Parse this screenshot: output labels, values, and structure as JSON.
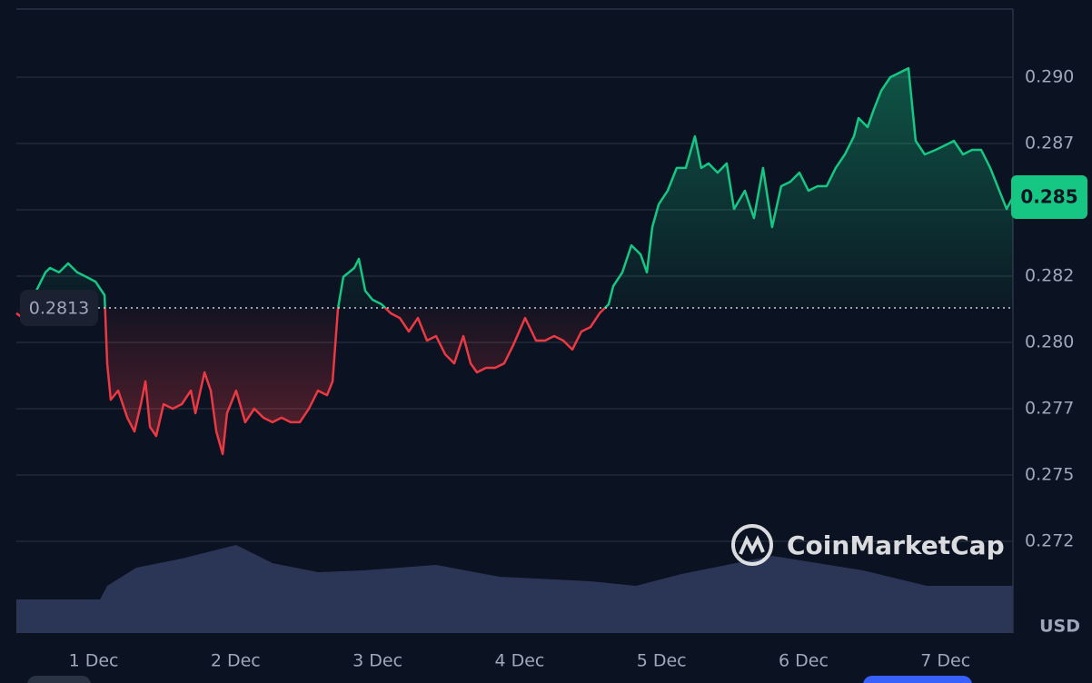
{
  "chart_data": {
    "type": "line",
    "xlim": [
      -0.544,
      6.475
    ],
    "xticks": [
      {
        "value": 0,
        "label": "1 Dec"
      },
      {
        "value": 1,
        "label": "2 Dec"
      },
      {
        "value": 2,
        "label": "3 Dec"
      },
      {
        "value": 3,
        "label": "4 Dec"
      },
      {
        "value": 4,
        "label": "5 Dec"
      },
      {
        "value": 5,
        "label": "6 Dec"
      },
      {
        "value": 6,
        "label": "7 Dec"
      }
    ],
    "ylim": [
      0.26904,
      0.29257
    ],
    "yticks": [
      {
        "value": 0.29,
        "label": "0.290"
      },
      {
        "value": 0.2875,
        "label": "0.287"
      },
      {
        "value": 0.285,
        "label": "0.285"
      },
      {
        "value": 0.2825,
        "label": "0.282"
      },
      {
        "value": 0.28,
        "label": "0.280"
      },
      {
        "value": 0.2775,
        "label": "0.277"
      },
      {
        "value": 0.275,
        "label": "0.275"
      },
      {
        "value": 0.2725,
        "label": "0.272"
      }
    ],
    "grid": true,
    "currency": "USD",
    "baseline": 0.2813,
    "current_price": {
      "value": 0.28548,
      "label": "0.285"
    },
    "up_color": "#16c784",
    "down_color": "#ea3943",
    "x": [
      -0.544,
      -0.499,
      -0.403,
      -0.339,
      -0.307,
      -0.243,
      -0.179,
      -0.115,
      -0.051,
      0.013,
      0.077,
      0.096,
      0.121,
      0.173,
      0.237,
      0.288,
      0.333,
      0.365,
      0.397,
      0.441,
      0.493,
      0.557,
      0.621,
      0.685,
      0.717,
      0.781,
      0.825,
      0.864,
      0.909,
      0.94,
      1.004,
      1.068,
      1.132,
      1.196,
      1.26,
      1.324,
      1.388,
      1.452,
      1.516,
      1.58,
      1.644,
      1.683,
      1.721,
      1.759,
      1.836,
      1.868,
      1.913,
      1.964,
      2.028,
      2.092,
      2.156,
      2.22,
      2.284,
      2.348,
      2.412,
      2.476,
      2.54,
      2.604,
      2.655,
      2.7,
      2.764,
      2.828,
      2.892,
      2.956,
      3.039,
      3.116,
      3.18,
      3.244,
      3.308,
      3.372,
      3.436,
      3.5,
      3.564,
      3.628,
      3.66,
      3.724,
      3.788,
      3.852,
      3.897,
      3.935,
      3.98,
      4.043,
      4.107,
      4.171,
      4.235,
      4.28,
      4.331,
      4.395,
      4.459,
      4.511,
      4.587,
      4.651,
      4.715,
      4.779,
      4.843,
      4.907,
      4.971,
      5.035,
      5.099,
      5.163,
      5.227,
      5.291,
      5.355,
      5.387,
      5.451,
      5.496,
      5.547,
      5.611,
      5.675,
      5.739,
      5.79,
      5.854,
      5.931,
      5.995,
      6.059,
      6.123,
      6.187,
      6.251,
      6.315,
      6.379,
      6.43,
      6.475
    ],
    "values": [
      0.2811,
      0.28092,
      0.28195,
      0.28264,
      0.28281,
      0.28264,
      0.28298,
      0.28264,
      0.28247,
      0.28229,
      0.28178,
      0.27921,
      0.27784,
      0.27818,
      0.27716,
      0.27664,
      0.27767,
      0.27853,
      0.27681,
      0.27647,
      0.27767,
      0.2775,
      0.27767,
      0.27818,
      0.27733,
      0.27887,
      0.27818,
      0.27664,
      0.27579,
      0.27733,
      0.27818,
      0.27699,
      0.2775,
      0.27716,
      0.27699,
      0.27716,
      0.27699,
      0.27699,
      0.2775,
      0.27818,
      0.27801,
      0.27853,
      0.28127,
      0.28247,
      0.28281,
      0.28315,
      0.28195,
      0.28161,
      0.28144,
      0.2811,
      0.28092,
      0.28041,
      0.28092,
      0.28007,
      0.28024,
      0.27955,
      0.27921,
      0.28024,
      0.27921,
      0.27887,
      0.27904,
      0.27904,
      0.27921,
      0.2799,
      0.28092,
      0.28007,
      0.28007,
      0.28024,
      0.28007,
      0.27973,
      0.28041,
      0.28058,
      0.2811,
      0.28144,
      0.28212,
      0.28264,
      0.28366,
      0.28332,
      0.28264,
      0.28435,
      0.28521,
      0.28572,
      0.28658,
      0.28658,
      0.28777,
      0.28658,
      0.28675,
      0.2864,
      0.28675,
      0.28503,
      0.28572,
      0.28469,
      0.28658,
      0.28435,
      0.28589,
      0.28606,
      0.2864,
      0.28572,
      0.28589,
      0.28589,
      0.28658,
      0.28709,
      0.28777,
      0.28846,
      0.28812,
      0.2888,
      0.28949,
      0.29,
      0.29017,
      0.29034,
      0.2876,
      0.28709,
      0.28726,
      0.28743,
      0.2876,
      0.28709,
      0.28726,
      0.28726,
      0.28658,
      0.28572,
      0.28503,
      0.28548
    ],
    "volume": {
      "color": "#2b3556",
      "lim": [
        0,
        110
      ],
      "x": [
        -0.544,
        0.045,
        0.096,
        0.301,
        0.621,
        1.004,
        1.26,
        1.58,
        1.9,
        2.412,
        2.86,
        3.5,
        3.82,
        4.14,
        4.779,
        5.419,
        5.867,
        6.475
      ],
      "values": [
        37,
        37,
        52,
        72,
        82,
        97,
        77,
        67,
        69,
        75,
        62,
        57,
        52,
        65,
        85,
        69,
        52,
        52
      ]
    },
    "watermark": "CoinMarketCap"
  }
}
